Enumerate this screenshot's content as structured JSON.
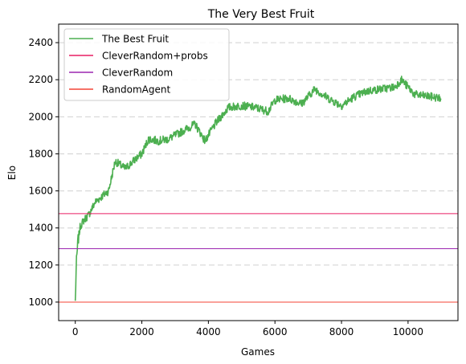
{
  "chart_data": {
    "type": "line",
    "title": "The Very Best Fruit",
    "xlabel": "Games",
    "ylabel": "Elo",
    "xlim": [
      -500,
      11500
    ],
    "ylim": [
      900,
      2500
    ],
    "xticks": [
      0,
      2000,
      4000,
      6000,
      8000,
      10000
    ],
    "xtick_labels": [
      "0",
      "2000",
      "4000",
      "6000",
      "8000",
      "10000"
    ],
    "yticks": [
      1000,
      1200,
      1400,
      1600,
      1800,
      2000,
      2200,
      2400
    ],
    "ytick_labels": [
      "1000",
      "1200",
      "1400",
      "1600",
      "1800",
      "2000",
      "2200",
      "2400"
    ],
    "grid": "y-dashed",
    "legend_position": "top-left",
    "series": [
      {
        "name": "The Best Fruit",
        "color": "#4caf50",
        "style": "noisy-line",
        "x": [
          0,
          30,
          80,
          150,
          250,
          400,
          600,
          800,
          1000,
          1200,
          1500,
          1800,
          2000,
          2200,
          2500,
          2800,
          3000,
          3300,
          3600,
          3900,
          4200,
          4600,
          5000,
          5400,
          5800,
          6000,
          6400,
          6800,
          7200,
          7600,
          8000,
          8400,
          8800,
          9200,
          9600,
          9800,
          10200,
          10600,
          11000
        ],
        "values": [
          1000,
          1200,
          1330,
          1410,
          1440,
          1470,
          1540,
          1570,
          1600,
          1760,
          1720,
          1770,
          1800,
          1880,
          1870,
          1880,
          1900,
          1930,
          1960,
          1870,
          1960,
          2050,
          2060,
          2050,
          2030,
          2090,
          2100,
          2070,
          2150,
          2100,
          2060,
          2110,
          2140,
          2150,
          2160,
          2200,
          2120,
          2110,
          2100
        ]
      },
      {
        "name": "CleverRandom+probs",
        "color": "#e91e63",
        "style": "hline",
        "y": 1477
      },
      {
        "name": "CleverRandom",
        "color": "#9c27b0",
        "style": "hline",
        "y": 1288
      },
      {
        "name": "RandomAgent",
        "color": "#f44336",
        "style": "hline",
        "y": 1000
      }
    ]
  }
}
